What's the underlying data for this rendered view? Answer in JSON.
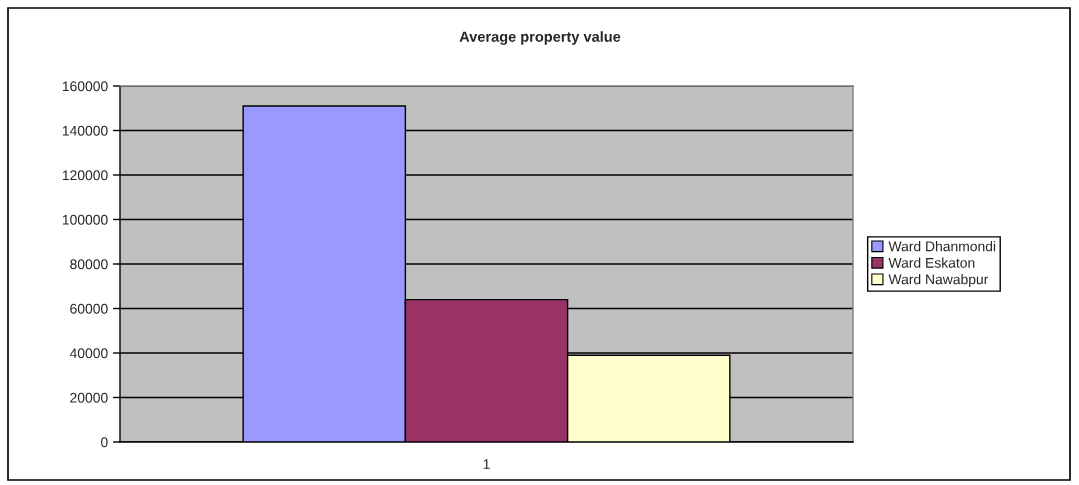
{
  "chart_data": {
    "type": "bar",
    "title": "Average property value",
    "categories": [
      "1"
    ],
    "series": [
      {
        "name": "Ward Dhanmondi",
        "color": "#9999ff",
        "values": [
          151000
        ]
      },
      {
        "name": "Ward Eskaton",
        "color": "#993366",
        "values": [
          64000
        ]
      },
      {
        "name": "Ward Nawabpur",
        "color": "#ffffcc",
        "values": [
          39000
        ]
      }
    ],
    "ylim": [
      0,
      160000
    ],
    "yticks": [
      0,
      20000,
      40000,
      60000,
      80000,
      100000,
      120000,
      140000,
      160000
    ],
    "grid": "y",
    "legend": "right"
  }
}
